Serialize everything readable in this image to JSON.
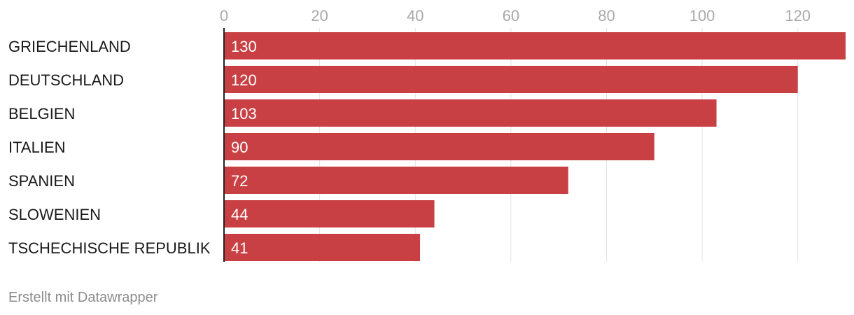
{
  "chart_data": {
    "type": "bar",
    "orientation": "horizontal",
    "categories": [
      "GRIECHENLAND",
      "DEUTSCHLAND",
      "BELGIEN",
      "ITALIEN",
      "SPANIEN",
      "SLOWENIEN",
      "TSCHECHISCHE REPUBLIK"
    ],
    "values": [
      130,
      120,
      103,
      90,
      72,
      44,
      41
    ],
    "xlim": [
      0,
      130
    ],
    "xticks": [
      0,
      20,
      40,
      60,
      80,
      100,
      120
    ],
    "title": "",
    "xlabel": "",
    "ylabel": "",
    "grid": true,
    "bar_color": "#c94044",
    "show_value_labels": true
  },
  "footer": {
    "credit": "Erstellt mit Datawrapper"
  }
}
